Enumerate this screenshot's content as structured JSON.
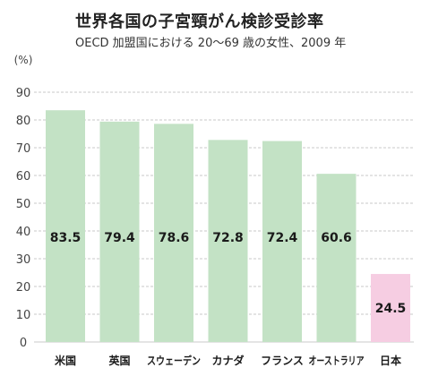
{
  "chart_data": {
    "type": "bar",
    "title": "世界各国の子宮頸がん検診受診率",
    "subtitle": "OECD 加盟国における 20～69 歳の女性、2009 年",
    "ylabel": "(%)",
    "xlabel": "",
    "ylim": [
      0,
      90
    ],
    "yticks": [
      0,
      10,
      20,
      30,
      40,
      50,
      60,
      70,
      80,
      90
    ],
    "grid": true,
    "categories": [
      "米国",
      "英国",
      "スウェーデン",
      "カナダ",
      "フランス",
      "オーストラリア",
      "日本"
    ],
    "values": [
      83.5,
      79.4,
      78.6,
      72.8,
      72.4,
      60.6,
      24.5
    ],
    "value_labels": [
      "83.5",
      "79.4",
      "78.6",
      "72.8",
      "72.4",
      "60.6",
      "24.5"
    ],
    "colors": {
      "default_bar": "#c3e2c5",
      "highlight_bar": "#f6cde2",
      "grid": "#c9c9c9"
    },
    "highlight_category": "日本"
  }
}
